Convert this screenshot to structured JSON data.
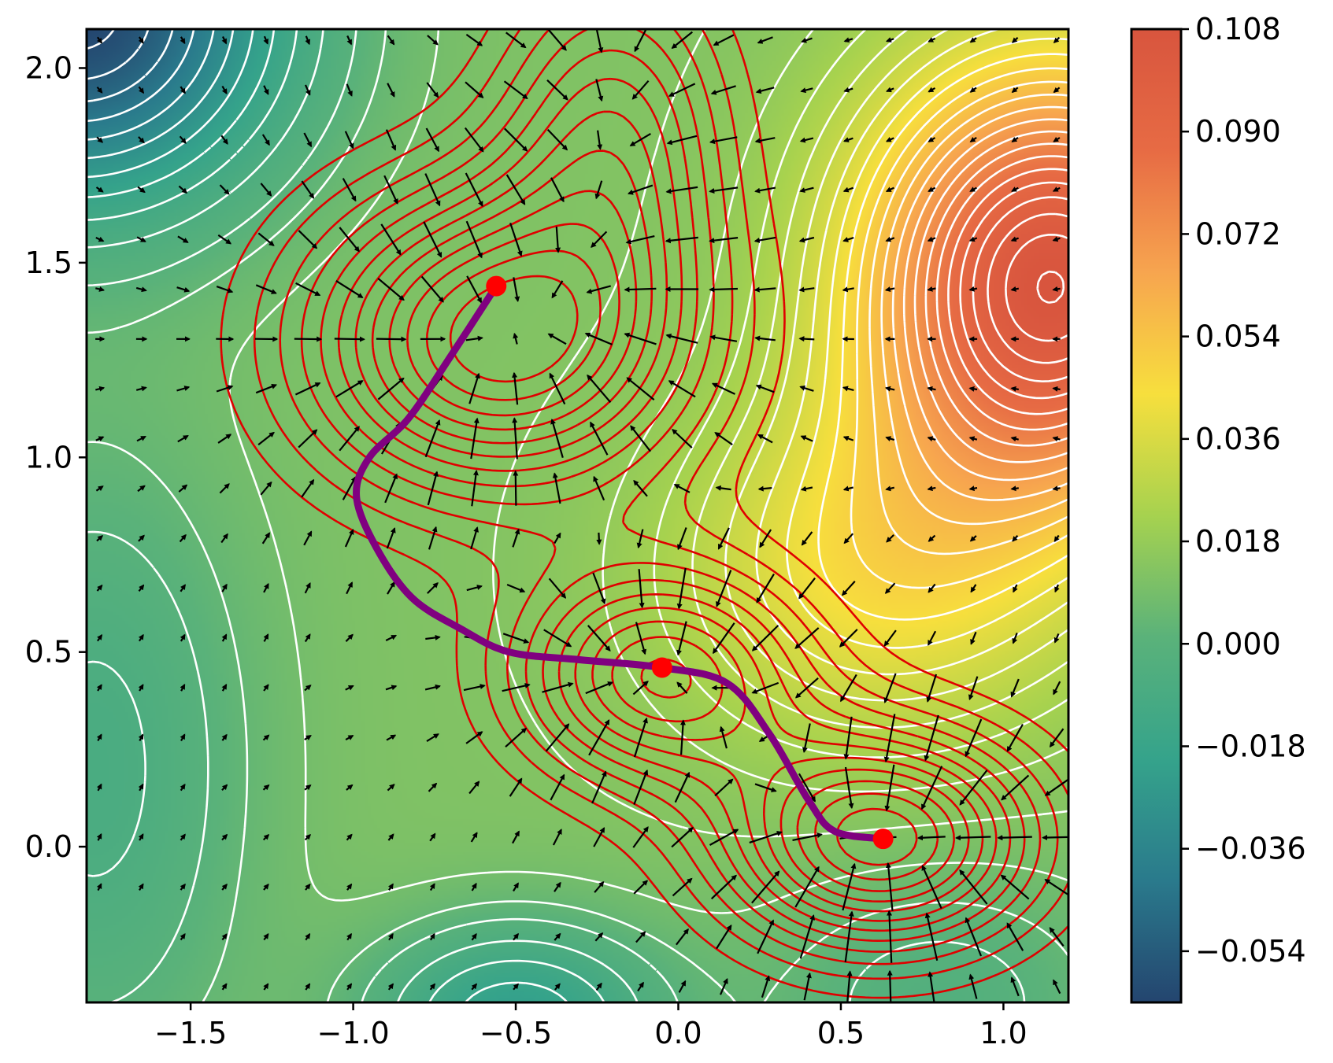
{
  "chart_data": {
    "type": "contour",
    "title": "",
    "xlabel": "",
    "ylabel": "",
    "xlim": [
      -1.82,
      1.2
    ],
    "ylim": [
      -0.4,
      2.1
    ],
    "x_ticks": [
      {
        "value": -1.5,
        "label": "−1.5"
      },
      {
        "value": -1.0,
        "label": "−1.0"
      },
      {
        "value": -0.5,
        "label": "−0.5"
      },
      {
        "value": 0.0,
        "label": "0.0"
      },
      {
        "value": 0.5,
        "label": "0.5"
      },
      {
        "value": 1.0,
        "label": "1.0"
      }
    ],
    "y_ticks": [
      {
        "value": 0.0,
        "label": "0.0"
      },
      {
        "value": 0.5,
        "label": "0.5"
      },
      {
        "value": 1.0,
        "label": "1.0"
      },
      {
        "value": 1.5,
        "label": "1.5"
      },
      {
        "value": 2.0,
        "label": "2.0"
      }
    ],
    "colorbar": {
      "range": [
        -0.063,
        0.108
      ],
      "colormap": [
        "#24456f",
        "#2a7a8c",
        "#35a38b",
        "#5ab27a",
        "#a6d24f",
        "#f7df3d",
        "#f7a54f",
        "#e76b44",
        "#d8553e"
      ],
      "ticks": [
        {
          "value": 0.108,
          "label": "0.108"
        },
        {
          "value": 0.09,
          "label": "0.090"
        },
        {
          "value": 0.072,
          "label": "0.072"
        },
        {
          "value": 0.054,
          "label": "0.054"
        },
        {
          "value": 0.036,
          "label": "0.036"
        },
        {
          "value": 0.018,
          "label": "0.018"
        },
        {
          "value": 0.0,
          "label": "0.000"
        },
        {
          "value": -0.018,
          "label": "−0.018"
        },
        {
          "value": -0.036,
          "label": "−0.036"
        },
        {
          "value": -0.054,
          "label": "−0.054"
        }
      ]
    },
    "field": {
      "constant": 0.012,
      "bumps": [
        {
          "x": 1.15,
          "y": 1.45,
          "sx": 0.42,
          "sy": 0.4,
          "a": 0.095
        },
        {
          "x": 0.6,
          "y": 0.7,
          "sx": 0.45,
          "sy": 0.32,
          "a": 0.03
        },
        {
          "x": -1.85,
          "y": 2.15,
          "sx": 0.45,
          "sy": 0.35,
          "a": -0.075
        },
        {
          "x": -0.5,
          "y": -0.45,
          "sx": 0.32,
          "sy": 0.18,
          "a": -0.035
        },
        {
          "x": -1.8,
          "y": 0.2,
          "sx": 0.35,
          "sy": 0.6,
          "a": -0.02
        },
        {
          "x": 0.8,
          "y": -0.4,
          "sx": 0.4,
          "sy": 0.25,
          "a": -0.015
        }
      ]
    },
    "landscape_minima": [
      {
        "x": -0.55,
        "y": 1.3,
        "sx": 0.42,
        "sy": 0.28,
        "a": -1.0
      },
      {
        "x": -0.05,
        "y": 0.44,
        "sx": 0.32,
        "sy": 0.2,
        "a": -0.8
      },
      {
        "x": 0.62,
        "y": 0.02,
        "sx": 0.34,
        "sy": 0.2,
        "a": -1.0
      },
      {
        "x": -0.2,
        "y": 1.85,
        "sx": 0.25,
        "sy": 0.3,
        "a": -0.5
      }
    ],
    "path": {
      "color": "#800080",
      "points": [
        [
          -0.56,
          1.44
        ],
        [
          -0.7,
          1.26
        ],
        [
          -0.83,
          1.1
        ],
        [
          -0.95,
          1.0
        ],
        [
          -0.99,
          0.9
        ],
        [
          -0.93,
          0.77
        ],
        [
          -0.82,
          0.64
        ],
        [
          -0.67,
          0.56
        ],
        [
          -0.52,
          0.5
        ],
        [
          -0.3,
          0.48
        ],
        [
          -0.05,
          0.46
        ],
        [
          0.15,
          0.42
        ],
        [
          0.28,
          0.29
        ],
        [
          0.4,
          0.12
        ],
        [
          0.48,
          0.04
        ],
        [
          0.63,
          0.02
        ]
      ]
    },
    "points": [
      {
        "x": -0.56,
        "y": 1.44
      },
      {
        "x": -0.05,
        "y": 0.46
      },
      {
        "x": 0.63,
        "y": 0.02
      }
    ],
    "grid": false
  }
}
